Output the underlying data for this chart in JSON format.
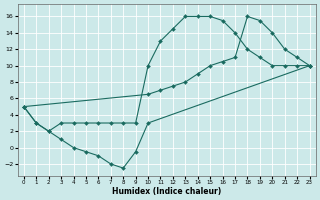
{
  "xlabel": "Humidex (Indice chaleur)",
  "xlim": [
    -0.5,
    23.5
  ],
  "ylim": [
    -3.5,
    17.5
  ],
  "yticks": [
    -2,
    0,
    2,
    4,
    6,
    8,
    10,
    12,
    14,
    16
  ],
  "xticks": [
    0,
    1,
    2,
    3,
    4,
    5,
    6,
    7,
    8,
    9,
    10,
    11,
    12,
    13,
    14,
    15,
    16,
    17,
    18,
    19,
    20,
    21,
    22,
    23
  ],
  "bg_color": "#cce9e9",
  "line_color": "#1a6b60",
  "line1_x": [
    0,
    1,
    2,
    3,
    4,
    5,
    6,
    7,
    8,
    9,
    10,
    11,
    12,
    13,
    14,
    15,
    16,
    17,
    18,
    19,
    20,
    21,
    22,
    23
  ],
  "line1_y": [
    5,
    3,
    2,
    3,
    3,
    3,
    3,
    3,
    3,
    3,
    10,
    13,
    14.5,
    16,
    16,
    16,
    15.5,
    14,
    12,
    11,
    10,
    10,
    10,
    10
  ],
  "line2_x": [
    0,
    1,
    2,
    3,
    4,
    5,
    6,
    7,
    8,
    9,
    10,
    23
  ],
  "line2_y": [
    5,
    3,
    2,
    1,
    0,
    -0.5,
    -1,
    -2,
    -2.5,
    -0.5,
    3,
    10
  ],
  "line3_x": [
    0,
    10,
    11,
    12,
    13,
    14,
    15,
    16,
    17,
    18,
    19,
    20,
    21,
    22,
    23
  ],
  "line3_y": [
    5,
    6.5,
    7,
    7.5,
    8,
    9,
    10,
    10.5,
    11,
    16,
    15.5,
    14,
    12,
    11,
    10
  ]
}
